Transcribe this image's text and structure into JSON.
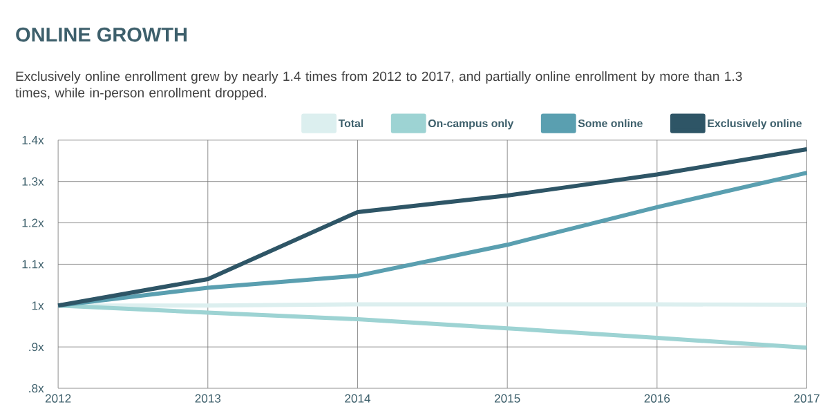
{
  "chart_data": {
    "type": "line",
    "title": "ONLINE GROWTH",
    "subtitle": "Exclusively online enrollment grew by nearly 1.4 times from 2012 to 2017, and partially online enrollment by more than 1.3 times, while in-person enrollment dropped.",
    "x": [
      2012,
      2013,
      2014,
      2015,
      2016,
      2017
    ],
    "series": [
      {
        "name": "Total",
        "color": "#dcefef",
        "values": [
          1.0,
          1.0,
          1.003,
          1.003,
          1.003,
          1.002
        ]
      },
      {
        "name": "On-campus only",
        "color": "#9dd3d3",
        "values": [
          1.0,
          0.983,
          0.967,
          0.945,
          0.922,
          0.898
        ]
      },
      {
        "name": "Some online",
        "color": "#5a9fb0",
        "values": [
          1.0,
          1.043,
          1.072,
          1.147,
          1.238,
          1.321
        ]
      },
      {
        "name": "Exclusively online",
        "color": "#2e5566",
        "values": [
          1.0,
          1.064,
          1.226,
          1.266,
          1.317,
          1.378
        ]
      }
    ],
    "xlim": [
      2012,
      2017
    ],
    "ylim": [
      0.8,
      1.4
    ],
    "xticks": [
      2012,
      2013,
      2014,
      2015,
      2016,
      2017
    ],
    "yticks": [
      {
        "value": 0.8,
        "label": ".8x"
      },
      {
        "value": 0.9,
        "label": ".9x"
      },
      {
        "value": 1.0,
        "label": "1x"
      },
      {
        "value": 1.1,
        "label": "1.1x"
      },
      {
        "value": 1.2,
        "label": "1.2x"
      },
      {
        "value": 1.3,
        "label": "1.3x"
      },
      {
        "value": 1.4,
        "label": "1.4x"
      }
    ],
    "grid": true,
    "legend": "top right"
  }
}
